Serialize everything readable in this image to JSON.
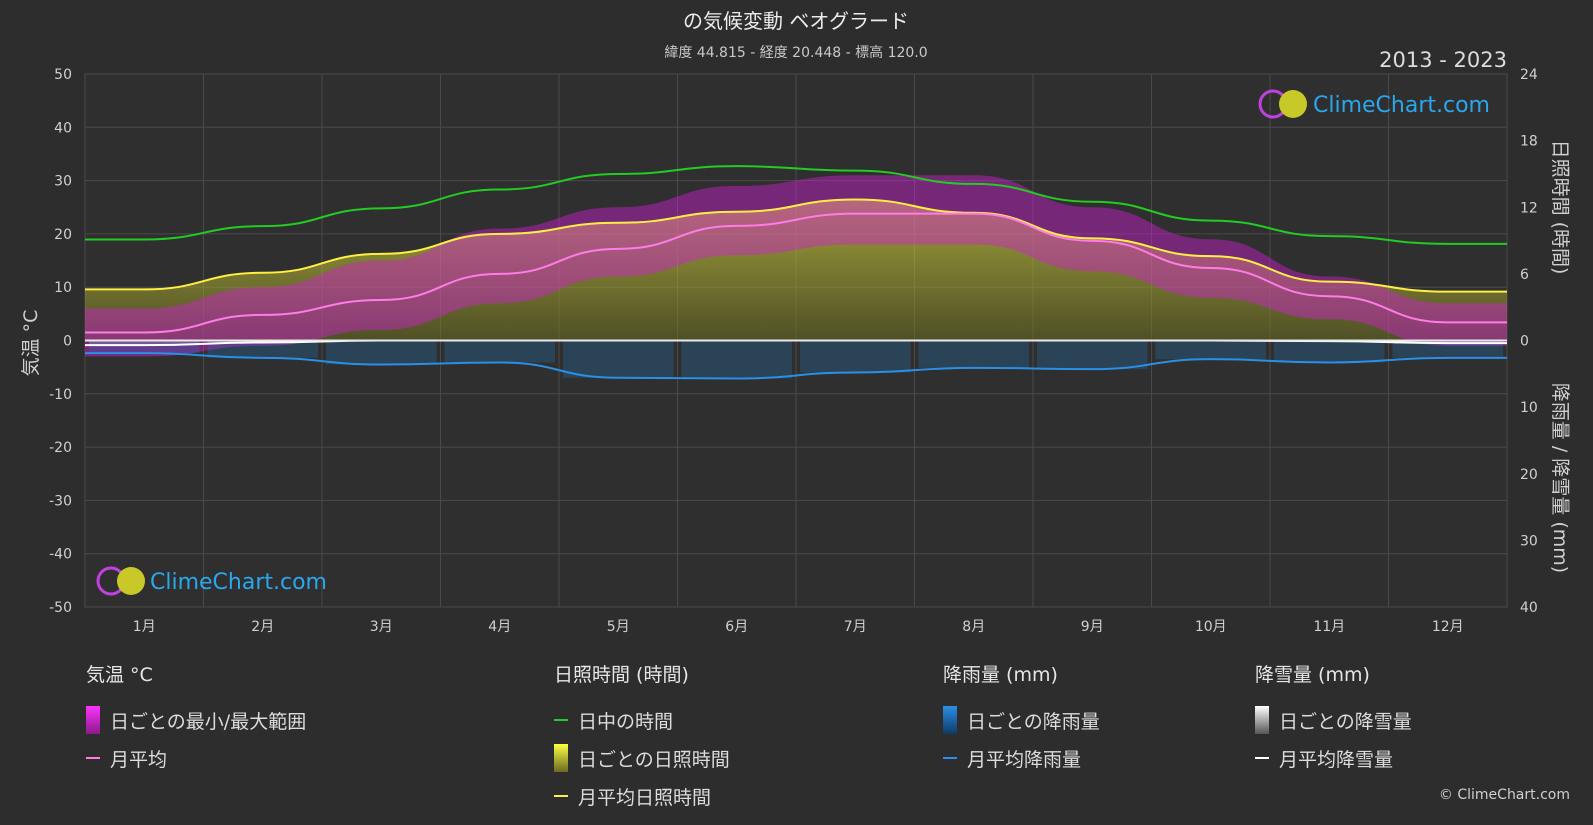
{
  "header": {
    "title": "の気候変動 ベオグラード",
    "subtitle": "緯度 44.815 - 経度 20.448 - 標高 120.0",
    "period": "2013 - 2023"
  },
  "brand": {
    "name": "ClimeChart.com",
    "copyright": "© ClimeChart.com"
  },
  "colors": {
    "background": "#2d2d2d",
    "temp_range": "#d01fd0",
    "temp_avg": "#ff7be6",
    "daylight": "#22cc22",
    "sunshine_fill": "#b8b82a",
    "sunshine_avg": "#ffee44",
    "rain": "#1e7fd0",
    "rain_avg": "#2a8fe6",
    "snow": "#a0a0a0",
    "snow_avg": "#ffffff",
    "brand_blue": "#2aa7ee"
  },
  "chart_data": {
    "type": "line",
    "categories": [
      "1月",
      "2月",
      "3月",
      "4月",
      "5月",
      "6月",
      "7月",
      "8月",
      "9月",
      "10月",
      "11月",
      "12月"
    ],
    "left_axis": {
      "label": "気温 °C",
      "min": -50,
      "max": 50,
      "ticks": [
        50,
        40,
        30,
        20,
        10,
        0,
        -10,
        -20,
        -30,
        -40,
        -50
      ]
    },
    "right_axis_top": {
      "label": "日照時間 (時間)",
      "min": 0,
      "max": 24,
      "ticks": [
        24,
        18,
        12,
        6,
        0
      ]
    },
    "right_axis_bottom": {
      "label": "降雨量 / 降雪量 (mm)",
      "min": 0,
      "max": 40,
      "ticks": [
        10,
        20,
        30,
        40
      ]
    },
    "series": [
      {
        "name": "日中の時間",
        "unit": "時間",
        "values": [
          9.1,
          10.3,
          11.9,
          13.6,
          15.0,
          15.7,
          15.3,
          14.1,
          12.5,
          10.8,
          9.4,
          8.7
        ]
      },
      {
        "name": "月平均日照時間",
        "unit": "時間",
        "values": [
          4.6,
          6.1,
          7.8,
          9.6,
          10.6,
          11.6,
          12.7,
          11.5,
          9.2,
          7.6,
          5.3,
          4.4
        ]
      },
      {
        "name": "月平均",
        "unit": "°C",
        "values": [
          1.5,
          4.8,
          7.6,
          12.5,
          17.2,
          21.5,
          23.8,
          23.8,
          18.7,
          13.6,
          8.3,
          3.4
        ]
      },
      {
        "name": "月平均降雨量",
        "unit": "mm",
        "values": [
          1.9,
          2.6,
          3.6,
          3.3,
          5.6,
          5.7,
          4.8,
          4.1,
          4.3,
          2.8,
          3.3,
          2.6
        ]
      },
      {
        "name": "月平均降雪量",
        "unit": "mm",
        "values": [
          0.7,
          0.3,
          0.0,
          0.0,
          0.0,
          0.0,
          0.0,
          0.0,
          0.0,
          0.0,
          0.1,
          0.4
        ]
      }
    ],
    "temp_range": {
      "name": "日ごとの最小/最大範囲",
      "min": [
        -3,
        -1,
        2,
        7,
        12,
        16,
        18,
        18,
        13,
        8,
        4,
        -1
      ],
      "max": [
        6,
        10,
        15,
        21,
        25,
        29,
        31,
        31,
        25,
        19,
        12,
        7
      ]
    }
  },
  "legend": {
    "temp": {
      "heading": "気温 °C",
      "items": [
        "日ごとの最小/最大範囲",
        "月平均"
      ]
    },
    "sun": {
      "heading": "日照時間 (時間)",
      "items": [
        "日中の時間",
        "日ごとの日照時間",
        "月平均日照時間"
      ]
    },
    "rain": {
      "heading": "降雨量 (mm)",
      "items": [
        "日ごとの降雨量",
        "月平均降雨量"
      ]
    },
    "snow": {
      "heading": "降雪量 (mm)",
      "items": [
        "日ごとの降雪量",
        "月平均降雪量"
      ]
    }
  }
}
